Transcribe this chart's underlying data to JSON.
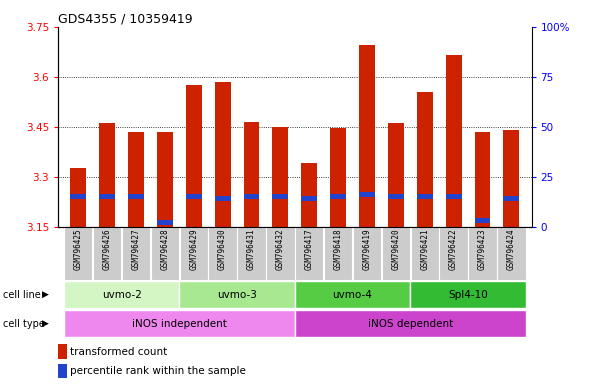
{
  "title": "GDS4355 / 10359419",
  "samples": [
    "GSM796425",
    "GSM796426",
    "GSM796427",
    "GSM796428",
    "GSM796429",
    "GSM796430",
    "GSM796431",
    "GSM796432",
    "GSM796417",
    "GSM796418",
    "GSM796419",
    "GSM796420",
    "GSM796421",
    "GSM796422",
    "GSM796423",
    "GSM796424"
  ],
  "red_values": [
    3.325,
    3.46,
    3.435,
    3.435,
    3.575,
    3.585,
    3.465,
    3.45,
    3.34,
    3.445,
    3.695,
    3.46,
    3.555,
    3.665,
    3.435,
    3.44
  ],
  "blue_pct": [
    15,
    15,
    15,
    2,
    15,
    14,
    15,
    15,
    14,
    15,
    16,
    15,
    15,
    15,
    3,
    14
  ],
  "y_min": 3.15,
  "y_max": 3.75,
  "y_ticks_left": [
    3.15,
    3.3,
    3.45,
    3.6,
    3.75
  ],
  "y_ticks_right_vals": [
    0,
    25,
    50,
    75,
    100
  ],
  "y_ticks_right_labels": [
    "0",
    "25",
    "50",
    "75",
    "100%"
  ],
  "cell_line_groups": [
    {
      "label": "uvmo-2",
      "start": 0,
      "end": 3,
      "color": "#d4f5c4"
    },
    {
      "label": "uvmo-3",
      "start": 4,
      "end": 7,
      "color": "#a8e890"
    },
    {
      "label": "uvmo-4",
      "start": 8,
      "end": 11,
      "color": "#55cc44"
    },
    {
      "label": "Spl4-10",
      "start": 12,
      "end": 15,
      "color": "#33bb33"
    }
  ],
  "cell_type_groups": [
    {
      "label": "iNOS independent",
      "start": 0,
      "end": 7,
      "color": "#ee88ee"
    },
    {
      "label": "iNOS dependent",
      "start": 8,
      "end": 15,
      "color": "#cc44cc"
    }
  ],
  "bar_color": "#cc2200",
  "blue_color": "#2244cc",
  "bar_width": 0.55,
  "background_color": "#ffffff"
}
